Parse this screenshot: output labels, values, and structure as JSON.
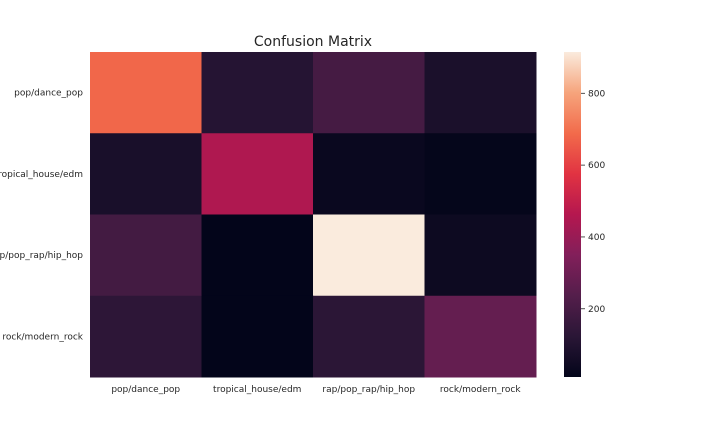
{
  "chart_data": {
    "type": "heatmap",
    "title": "Confusion Matrix",
    "xlabel": "",
    "ylabel": "",
    "x_categories": [
      "pop/dance_pop",
      "tropical_house/edm",
      "rap/pop_rap/hip_hop",
      "rock/modern_rock"
    ],
    "y_categories": [
      "pop/dance_pop",
      "tropical_house/edm",
      "rap/pop_rap/hip_hop",
      "rock/modern_rock"
    ],
    "matrix": [
      [
        680,
        110,
        195,
        80
      ],
      [
        75,
        450,
        30,
        15
      ],
      [
        190,
        10,
        915,
        40
      ],
      [
        130,
        10,
        125,
        275
      ]
    ],
    "colorbar": {
      "min": 10,
      "max": 915,
      "ticks": [
        200,
        400,
        600,
        800
      ],
      "colormap": "rocket"
    },
    "grid": false
  }
}
